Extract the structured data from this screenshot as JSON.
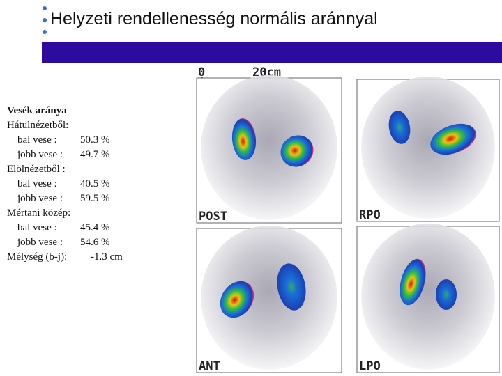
{
  "header": {
    "title": "Helyzeti rendellenesség normális aránnyal"
  },
  "report": {
    "heading": "Vesék aránya",
    "rows": [
      {
        "label": "Hátulnézetből:",
        "value": null
      },
      {
        "label": "bal  vese :",
        "value": "50.3 %"
      },
      {
        "label": "jobb vese :",
        "value": "49.7 %"
      },
      {
        "label": "Elölnézetből :",
        "value": null
      },
      {
        "label": "bal  vese :",
        "value": "40.5 %"
      },
      {
        "label": "jobb vese :",
        "value": "59.5 %"
      },
      {
        "label": "Mértani közép:",
        "value": null
      },
      {
        "label": "bal  vese :",
        "value": "45.4 %"
      },
      {
        "label": "jobb vese :",
        "value": "54.6 %"
      },
      {
        "label": "Mélység (b-j):",
        "value": "-1.3 cm"
      }
    ]
  },
  "images": {
    "scale_start": "0",
    "scale_end": "20cm",
    "panels": [
      {
        "label": "POST"
      },
      {
        "label": "RPO"
      },
      {
        "label": "ANT"
      },
      {
        "label": "LPO"
      }
    ]
  }
}
